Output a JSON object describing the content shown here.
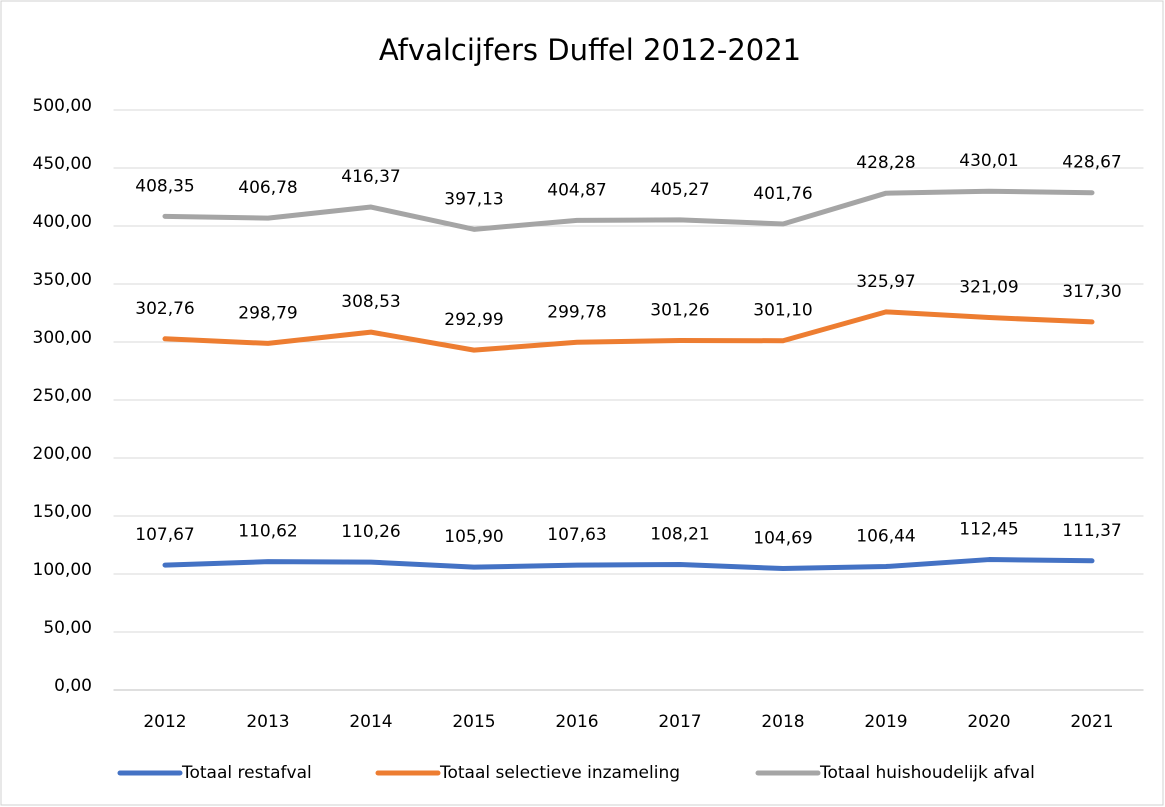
{
  "chart_data": {
    "type": "line",
    "title": "Afvalcijfers Duffel 2012-2021",
    "categories": [
      "2012",
      "2013",
      "2014",
      "2015",
      "2016",
      "2017",
      "2018",
      "2019",
      "2020",
      "2021"
    ],
    "series": [
      {
        "name": "Totaal restafval",
        "color": "#4472c4",
        "values": [
          107.67,
          110.62,
          110.26,
          105.9,
          107.63,
          108.21,
          104.69,
          106.44,
          112.45,
          111.37
        ],
        "value_labels": [
          "107,67",
          "110,62",
          "110,26",
          "105,90",
          "107,63",
          "108,21",
          "104,69",
          "106,44",
          "112,45",
          "111,37"
        ]
      },
      {
        "name": "Totaal selectieve inzameling",
        "color": "#ed7d31",
        "values": [
          302.76,
          298.79,
          308.53,
          292.99,
          299.78,
          301.26,
          301.1,
          325.97,
          321.09,
          317.3
        ],
        "value_labels": [
          "302,76",
          "298,79",
          "308,53",
          "292,99",
          "299,78",
          "301,26",
          "301,10",
          "325,97",
          "321,09",
          "317,30"
        ]
      },
      {
        "name": "Totaal huishoudelijk afval",
        "color": "#a5a5a5",
        "values": [
          408.35,
          406.78,
          416.37,
          397.13,
          404.87,
          405.27,
          401.76,
          428.28,
          430.01,
          428.67
        ],
        "value_labels": [
          "408,35",
          "406,78",
          "416,37",
          "397,13",
          "404,87",
          "405,27",
          "401,76",
          "428,28",
          "430,01",
          "428,67"
        ]
      }
    ],
    "ylim": [
      0,
      500
    ],
    "yticks": [
      {
        "value": 0,
        "label": "0,00"
      },
      {
        "value": 50,
        "label": "50,00"
      },
      {
        "value": 100,
        "label": "100,00"
      },
      {
        "value": 150,
        "label": "150,00"
      },
      {
        "value": 200,
        "label": "200,00"
      },
      {
        "value": 250,
        "label": "250,00"
      },
      {
        "value": 300,
        "label": "300,00"
      },
      {
        "value": 350,
        "label": "350,00"
      },
      {
        "value": 400,
        "label": "400,00"
      },
      {
        "value": 450,
        "label": "450,00"
      },
      {
        "value": 500,
        "label": "500,00"
      }
    ],
    "grid": true,
    "legend": "bottom"
  }
}
